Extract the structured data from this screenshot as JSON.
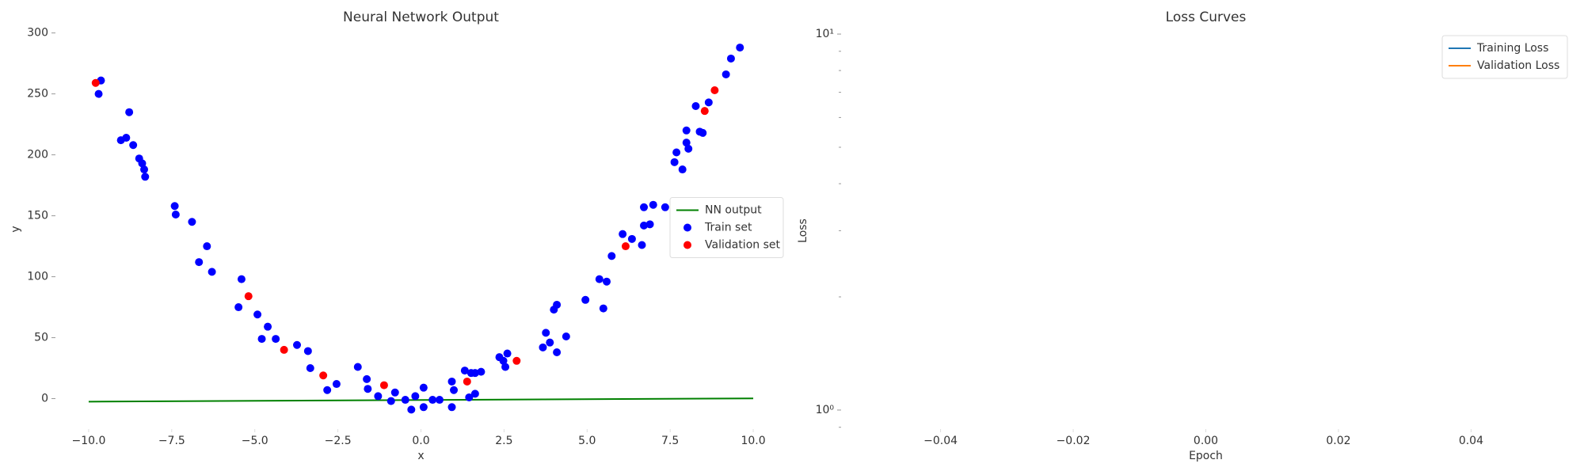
{
  "chart_data": [
    {
      "type": "scatter",
      "title": "Neural Network Output",
      "x_label": "x",
      "y_label": "y",
      "xlim": [
        -11,
        11
      ],
      "ylim": [
        -25,
        303
      ],
      "xticks": [
        {
          "value": -10,
          "label": "−10.0"
        },
        {
          "value": -7.5,
          "label": "−7.5"
        },
        {
          "value": -5,
          "label": "−5.0"
        },
        {
          "value": -2.5,
          "label": "−2.5"
        },
        {
          "value": 0,
          "label": "0.0"
        },
        {
          "value": 2.5,
          "label": "2.5"
        },
        {
          "value": 5,
          "label": "5.0"
        },
        {
          "value": 7.5,
          "label": "7.5"
        },
        {
          "value": 10,
          "label": "10.0"
        }
      ],
      "yticks": [
        0,
        50,
        100,
        150,
        200,
        250,
        300
      ],
      "legend": "center right",
      "series": [
        {
          "name": "NN output",
          "kind": "line",
          "color": "#008000",
          "x": [
            -10,
            10
          ],
          "values": [
            -2.5,
            0.2
          ]
        },
        {
          "name": "Train set",
          "kind": "scatter",
          "color": "#0000ff",
          "x": [
            -9.63,
            -9.7,
            -8.78,
            -9.03,
            -8.87,
            -8.66,
            -8.48,
            -8.39,
            -8.33,
            -8.3,
            -7.41,
            -7.38,
            -6.89,
            -6.44,
            -6.68,
            -6.29,
            -5.4,
            -5.49,
            -4.92,
            -4.61,
            -4.79,
            -4.37,
            -3.73,
            -3.4,
            -3.33,
            -2.54,
            -2.82,
            -1.9,
            -1.63,
            -1.6,
            -1.29,
            -0.9,
            -0.78,
            -0.47,
            -0.29,
            -0.17,
            0.08,
            0.08,
            0.35,
            0.56,
            0.93,
            0.99,
            0.93,
            1.32,
            1.51,
            1.63,
            1.81,
            1.45,
            1.63,
            2.36,
            2.48,
            2.54,
            2.6,
            3.67,
            3.76,
            3.88,
            4.0,
            4.09,
            4.09,
            4.37,
            4.95,
            5.37,
            5.59,
            5.49,
            5.74,
            6.07,
            6.35,
            6.65,
            6.71,
            6.89,
            6.71,
            6.99,
            7.35,
            7.63,
            7.69,
            7.87,
            7.99,
            8.05,
            7.99,
            8.27,
            8.39,
            8.48,
            8.66,
            9.18,
            9.33,
            9.6
          ],
          "values": [
            261,
            250,
            235,
            212,
            214,
            208,
            197,
            193,
            188,
            182,
            158,
            151,
            145,
            125,
            112,
            104,
            98,
            75,
            69,
            59,
            49,
            49,
            44,
            39,
            25,
            12,
            7,
            26,
            16,
            8,
            2,
            -2,
            5,
            -1,
            -9,
            2,
            9,
            -7,
            -1,
            -1,
            14,
            7,
            -7,
            23,
            21,
            21,
            22,
            1,
            4,
            34,
            31,
            26,
            37,
            42,
            54,
            46,
            73,
            77,
            38,
            51,
            81,
            98,
            96,
            74,
            117,
            135,
            131,
            126,
            142,
            143,
            157,
            159,
            157,
            194,
            202,
            188,
            210,
            205,
            220,
            240,
            219,
            218,
            243,
            266,
            279,
            288
          ]
        },
        {
          "name": "Validation set",
          "kind": "scatter",
          "color": "#ff0000",
          "x": [
            -9.79,
            -5.19,
            -4.12,
            -2.94,
            -1.11,
            1.39,
            2.88,
            6.16,
            8.54,
            8.84
          ],
          "values": [
            259,
            84,
            40,
            19,
            11,
            14,
            31,
            125,
            236,
            253
          ]
        }
      ]
    },
    {
      "type": "line",
      "title": "Loss Curves",
      "x_label": "Epoch",
      "y_label": "Loss",
      "yscale": "log",
      "xlim": [
        -0.055,
        0.055
      ],
      "ylim": [
        0.89,
        10.1
      ],
      "xticks": [
        {
          "value": -0.04,
          "label": "−0.04"
        },
        {
          "value": -0.02,
          "label": "−0.02"
        },
        {
          "value": 0,
          "label": "0.00"
        },
        0.02,
        0.04
      ],
      "yticks": [
        {
          "value": 1,
          "label": "10⁰"
        },
        {
          "value": 10,
          "label": "10¹"
        }
      ],
      "yminorticks": [
        0.9,
        2,
        3,
        4,
        5,
        6,
        7,
        8,
        9
      ],
      "legend": "upper right",
      "series": [
        {
          "name": "Training Loss",
          "kind": "line",
          "color": "#1f77b4",
          "x": [],
          "values": []
        },
        {
          "name": "Validation Loss",
          "kind": "line",
          "color": "#ff7f0e",
          "x": [],
          "values": []
        }
      ]
    }
  ]
}
